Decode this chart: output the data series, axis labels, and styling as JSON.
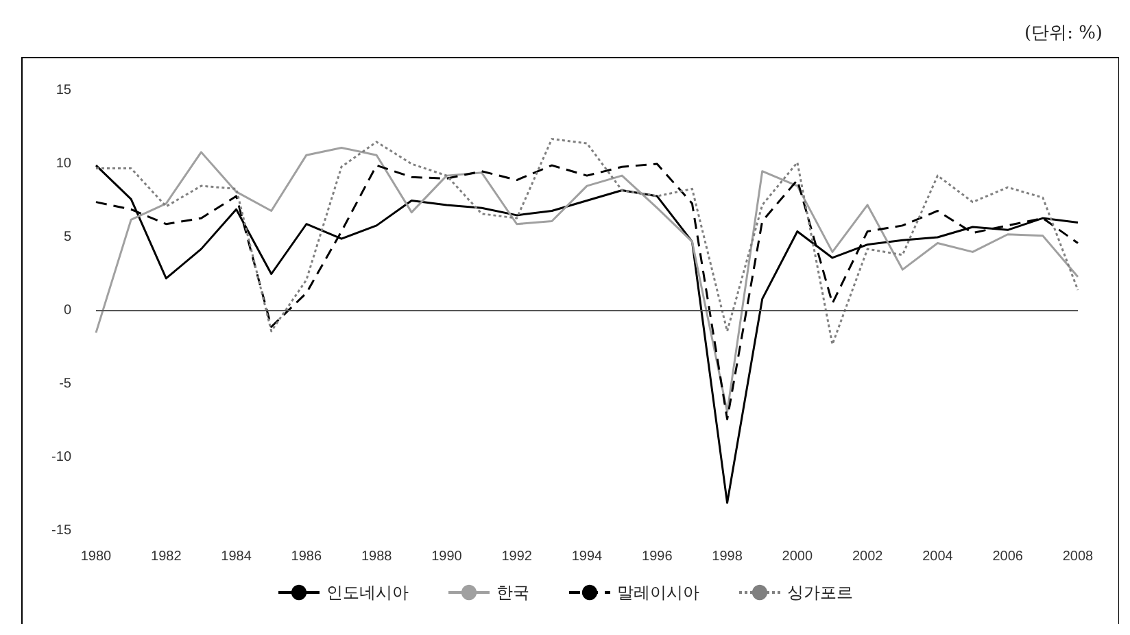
{
  "chart_data": {
    "type": "line",
    "annotations": [
      "(단위: %)"
    ],
    "x": [
      1980,
      1981,
      1982,
      1983,
      1984,
      1985,
      1986,
      1987,
      1988,
      1989,
      1990,
      1991,
      1992,
      1993,
      1994,
      1995,
      1996,
      1997,
      1998,
      1999,
      2000,
      2001,
      2002,
      2003,
      2004,
      2005,
      2006,
      2007,
      2008
    ],
    "series": [
      {
        "name": "인도네시아",
        "color": "#000000",
        "line_style": "solid",
        "values": [
          9.9,
          7.6,
          2.2,
          4.2,
          6.9,
          2.5,
          5.9,
          4.9,
          5.8,
          7.5,
          7.2,
          7.0,
          6.5,
          6.8,
          7.5,
          8.2,
          7.8,
          4.7,
          -13.1,
          0.8,
          5.4,
          3.6,
          4.5,
          4.8,
          5.0,
          5.7,
          5.5,
          6.3,
          6.0
        ]
      },
      {
        "name": "한국",
        "color": "#a0a0a0",
        "line_style": "solid",
        "values": [
          -1.5,
          6.2,
          7.3,
          10.8,
          8.1,
          6.8,
          10.6,
          11.1,
          10.6,
          6.7,
          9.2,
          9.4,
          5.9,
          6.1,
          8.5,
          9.2,
          7.0,
          4.7,
          -6.9,
          9.5,
          8.5,
          4.0,
          7.2,
          2.8,
          4.6,
          4.0,
          5.2,
          5.1,
          2.3
        ]
      },
      {
        "name": "말레이시아",
        "color": "#000000",
        "line_style": "dashed",
        "values": [
          7.4,
          6.9,
          5.9,
          6.3,
          7.8,
          -1.1,
          1.2,
          5.4,
          9.9,
          9.1,
          9.0,
          9.5,
          8.9,
          9.9,
          9.2,
          9.8,
          10.0,
          7.3,
          -7.4,
          6.1,
          8.9,
          0.5,
          5.4,
          5.8,
          6.8,
          5.3,
          5.8,
          6.3,
          4.6
        ]
      },
      {
        "name": "싱가포르",
        "color": "#808080",
        "line_style": "dotted",
        "values": [
          9.7,
          9.7,
          7.1,
          8.5,
          8.3,
          -1.4,
          2.1,
          9.8,
          11.5,
          10.0,
          9.2,
          6.6,
          6.3,
          11.7,
          11.4,
          8.2,
          7.8,
          8.3,
          -1.4,
          7.2,
          10.1,
          -2.3,
          4.2,
          3.8,
          9.2,
          7.4,
          8.4,
          7.7,
          1.4
        ]
      }
    ],
    "xlim": [
      1980,
      2008
    ],
    "xticks": [
      1980,
      1982,
      1984,
      1986,
      1988,
      1990,
      1992,
      1994,
      1996,
      1998,
      2000,
      2002,
      2004,
      2006,
      2008
    ],
    "ylim": [
      -15,
      15
    ],
    "yticks": [
      -15,
      -10,
      -5,
      0,
      5,
      10,
      15
    ],
    "ref_lines": [
      {
        "axis": "y",
        "value": 0,
        "color": "#555555"
      }
    ],
    "grid": false,
    "legend": "bottom",
    "marker": "none"
  }
}
